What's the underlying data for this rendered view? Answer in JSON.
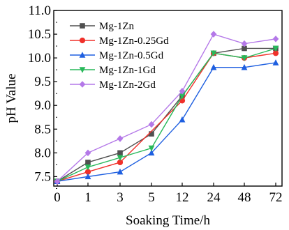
{
  "chart_data": {
    "type": "line",
    "categories": [
      "0",
      "1",
      "3",
      "5",
      "12",
      "24",
      "48",
      "72"
    ],
    "xlabel": "Soaking Time/h",
    "ylabel": "pH Value",
    "ylim": [
      7.3,
      11.0
    ],
    "yticks": [
      "7.5",
      "8.0",
      "8.5",
      "9.0",
      "9.5",
      "10.0",
      "10.5",
      "11.0"
    ],
    "grid": false,
    "legend_position": "top-left",
    "series": [
      {
        "name": "Mg-1Zn",
        "color": "#505050",
        "marker": "square",
        "values": [
          7.4,
          7.8,
          8.0,
          8.4,
          9.2,
          10.1,
          10.2,
          10.2
        ]
      },
      {
        "name": "Mg-1Zn-0.25Gd",
        "color": "#f0302a",
        "marker": "circle",
        "values": [
          7.4,
          7.6,
          7.8,
          null,
          9.1,
          10.1,
          10.0,
          10.1
        ]
      },
      {
        "name": "Mg-1Zn-0.5Gd",
        "color": "#1e5fe0",
        "marker": "triangle-up",
        "values": [
          7.4,
          7.5,
          7.6,
          8.0,
          8.7,
          9.8,
          9.8,
          9.9
        ]
      },
      {
        "name": "Mg-1Zn-1Gd",
        "color": "#28b85a",
        "marker": "triangle-down",
        "values": [
          7.4,
          7.7,
          7.9,
          8.1,
          9.2,
          10.1,
          10.0,
          10.2
        ]
      },
      {
        "name": "Mg-1Zn-2Gd",
        "color": "#b478e8",
        "marker": "diamond",
        "values": [
          7.4,
          8.0,
          8.3,
          8.6,
          9.3,
          10.5,
          10.3,
          10.4
        ]
      }
    ]
  }
}
